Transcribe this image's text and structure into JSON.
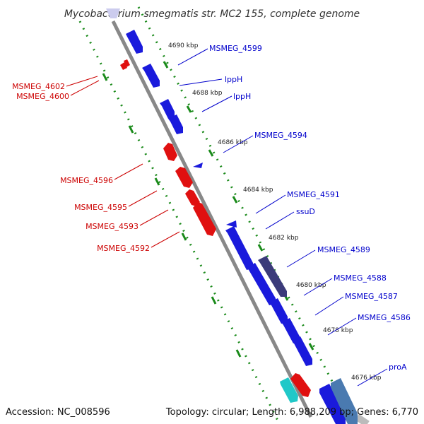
{
  "title": "Mycobacterium smegmatis str. MC2 155, complete genome",
  "footer": {
    "accession": "Accession: NC_008596",
    "topology": "Topology: circular; Length: 6,988,209 bp; Genes: 6,770"
  },
  "colors": {
    "forward": "#1a1adc",
    "reverse": "#e01010",
    "backbone": "#888888",
    "gc_track": "#1a8a1a",
    "feature_dark": "#3b3b7a",
    "feature_cyan": "#20c8c8",
    "feature_steel": "#4a7ab0",
    "blue_label": "#0000cc",
    "red_label": "#cc0000"
  },
  "ticks": [
    "4690 kbp",
    "4688 kbp",
    "4686 kbp",
    "4684 kbp",
    "4682 kbp",
    "4680 kbp",
    "4678 kbp",
    "4676 kbp"
  ],
  "labels_forward": [
    "MSMEG_4599",
    "lppH",
    "lppH",
    "MSMEG_4594",
    "MSMEG_4591",
    "ssuD",
    "MSMEG_4589",
    "MSMEG_4588",
    "MSMEG_4587",
    "MSMEG_4586",
    "proA"
  ],
  "labels_reverse": [
    "MSMEG_4602",
    "MSMEG_4600",
    "MSMEG_4596",
    "MSMEG_4595",
    "MSMEG_4593",
    "MSMEG_4592"
  ]
}
